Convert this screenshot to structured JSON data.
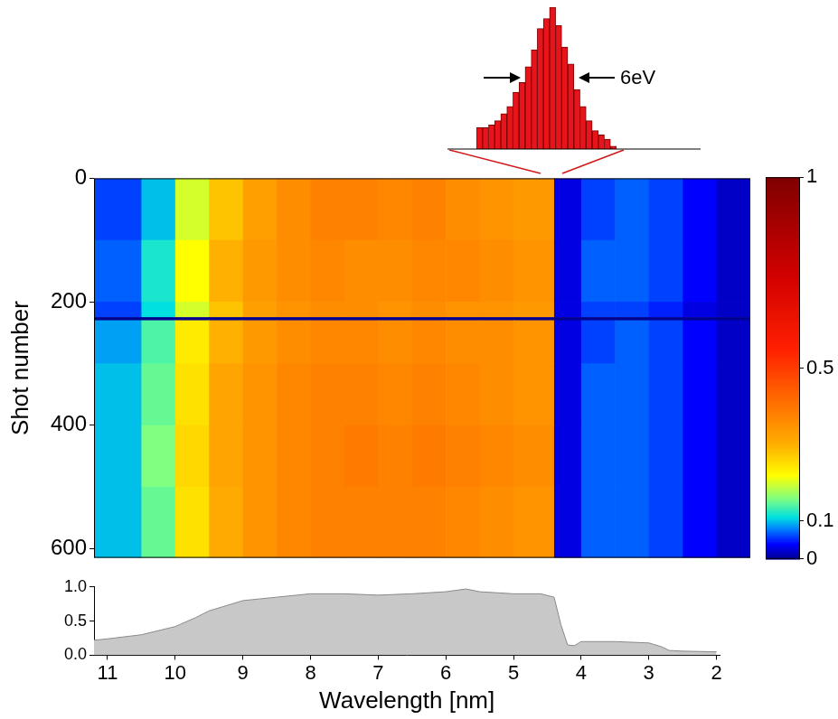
{
  "chart_data": [
    {
      "type": "bar",
      "categories": [
        null,
        null,
        null,
        null,
        null,
        null,
        null,
        null,
        null,
        null,
        null,
        null,
        null,
        null,
        null,
        null,
        null,
        null,
        null,
        null,
        null,
        null,
        null
      ],
      "values": [
        0.15,
        0.15,
        0.17,
        0.2,
        0.25,
        0.3,
        0.4,
        0.47,
        0.58,
        0.7,
        0.85,
        0.92,
        1.0,
        0.87,
        0.72,
        0.6,
        0.42,
        0.3,
        0.2,
        0.13,
        0.1,
        0.07,
        0.02
      ],
      "ylim": [
        0,
        1
      ],
      "color": "#e8141b",
      "annotations": [
        "6eV"
      ],
      "tick_labels": false,
      "grid": false
    },
    {
      "type": "heatmap",
      "y_label": "Shot number",
      "x_bins": [
        11.2,
        10.5,
        10,
        9.5,
        9,
        8.5,
        8,
        7.5,
        7,
        6.5,
        6,
        5.5,
        5,
        4.4,
        4,
        3.5,
        3,
        2.5,
        2,
        1.5
      ],
      "y_bins": [
        0,
        100,
        200,
        225,
        230,
        300,
        400,
        500,
        615
      ],
      "cells": [
        [
          0.06,
          0.1,
          0.2,
          0.28,
          0.33,
          0.36,
          0.38,
          0.38,
          0.37,
          0.38,
          0.36,
          0.35,
          0.34,
          0.03,
          0.06,
          0.07,
          0.06,
          0.04,
          0.02
        ],
        [
          0.07,
          0.12,
          0.22,
          0.3,
          0.34,
          0.36,
          0.37,
          0.36,
          0.36,
          0.37,
          0.37,
          0.36,
          0.35,
          0.03,
          0.07,
          0.07,
          0.06,
          0.04,
          0.02
        ],
        [
          0.06,
          0.11,
          0.2,
          0.28,
          0.33,
          0.35,
          0.36,
          0.36,
          0.35,
          0.36,
          0.35,
          0.35,
          0.34,
          0.03,
          0.06,
          0.06,
          0.05,
          0.03,
          0.02
        ],
        [
          0,
          0,
          0,
          0,
          0,
          0,
          0,
          0,
          0,
          0,
          0,
          0,
          0,
          0,
          0,
          0,
          0,
          0,
          0
        ],
        [
          0.09,
          0.14,
          0.24,
          0.3,
          0.34,
          0.36,
          0.37,
          0.37,
          0.36,
          0.37,
          0.36,
          0.36,
          0.35,
          0.03,
          0.06,
          0.07,
          0.06,
          0.04,
          0.02
        ],
        [
          0.1,
          0.15,
          0.25,
          0.32,
          0.35,
          0.37,
          0.38,
          0.38,
          0.37,
          0.38,
          0.37,
          0.36,
          0.35,
          0.03,
          0.07,
          0.07,
          0.06,
          0.04,
          0.02
        ],
        [
          0.1,
          0.16,
          0.26,
          0.32,
          0.35,
          0.37,
          0.38,
          0.39,
          0.38,
          0.39,
          0.38,
          0.37,
          0.36,
          0.03,
          0.07,
          0.07,
          0.06,
          0.04,
          0.02
        ],
        [
          0.1,
          0.15,
          0.25,
          0.31,
          0.35,
          0.37,
          0.38,
          0.38,
          0.38,
          0.38,
          0.37,
          0.36,
          0.35,
          0.03,
          0.07,
          0.07,
          0.06,
          0.04,
          0.02
        ]
      ],
      "xlim": [
        11.2,
        1.5
      ],
      "ylim": [
        615,
        0
      ],
      "yticks": [
        0,
        200,
        400,
        600
      ],
      "colorbar": {
        "range": [
          0,
          1
        ],
        "ticks": [
          0,
          0.1,
          0.5,
          1
        ]
      },
      "tick_labels": "y",
      "grid": false
    },
    {
      "type": "area",
      "x_label": "Wavelength [nm]",
      "x": [
        11.2,
        11,
        10.5,
        10,
        9.7,
        9.5,
        9,
        8.5,
        8,
        7.5,
        7,
        6.5,
        6,
        5.7,
        5.5,
        5,
        4.6,
        4.4,
        4.3,
        4.2,
        4.1,
        4,
        3.5,
        3,
        2.8,
        2.7,
        2.5,
        2
      ],
      "values": [
        0.22,
        0.24,
        0.3,
        0.42,
        0.55,
        0.65,
        0.8,
        0.85,
        0.9,
        0.9,
        0.88,
        0.9,
        0.93,
        0.97,
        0.93,
        0.9,
        0.9,
        0.85,
        0.45,
        0.15,
        0.14,
        0.2,
        0.2,
        0.18,
        0.12,
        0.07,
        0.06,
        0.05
      ],
      "color": "#c8c8c8",
      "xlim": [
        11.2,
        1.95
      ],
      "xticks": [
        11,
        10,
        9,
        8,
        7,
        6,
        5,
        4,
        3,
        2
      ],
      "ylim": [
        0,
        1
      ],
      "yticks": [
        {
          "value": 0,
          "label": "0.0"
        },
        {
          "value": 0.5,
          "label": "0.5"
        },
        {
          "value": 1,
          "label": "1.0"
        }
      ],
      "grid": false
    }
  ]
}
